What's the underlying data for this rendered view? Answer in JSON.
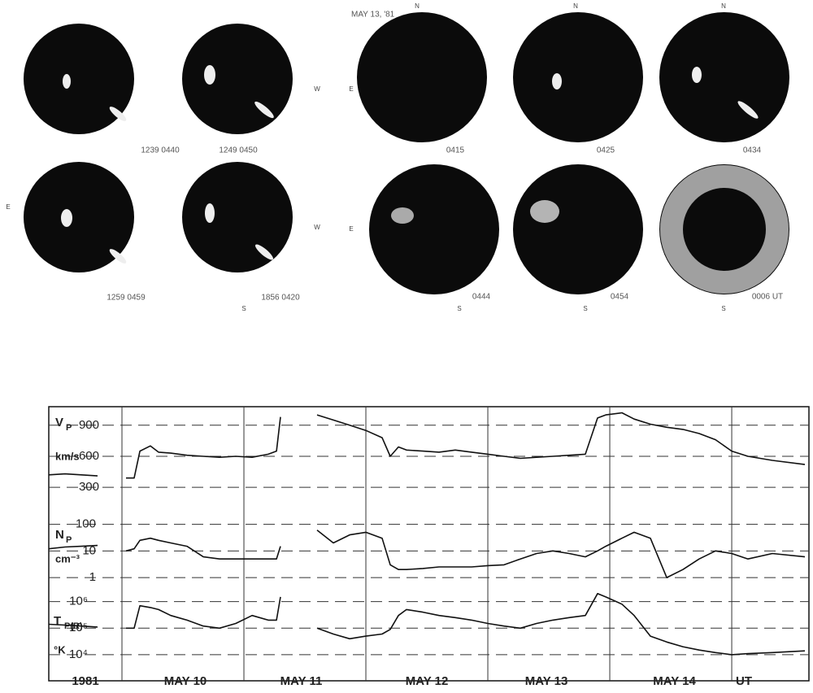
{
  "figure": {
    "date_label": "MAY 13, '81",
    "left_images": [
      "1239 0440",
      "1249 0450",
      "1259 0459",
      "1856 0420"
    ],
    "right_images": [
      "0415",
      "0425",
      "0434",
      "0444",
      "0454",
      "0006 UT"
    ],
    "directions": [
      "N",
      "N",
      "N",
      "E",
      "E",
      "W",
      "W",
      "E",
      "S",
      "S",
      "S",
      "S"
    ]
  },
  "timeline": {
    "year": "1981",
    "unit": "UT",
    "xticks": [
      {
        "value": 10.52,
        "label": "MAY 10"
      },
      {
        "value": 11.47,
        "label": "MAY 11"
      },
      {
        "value": 12.5,
        "label": "MAY 12"
      },
      {
        "value": 13.48,
        "label": "MAY 13"
      },
      {
        "value": 14.53,
        "label": "MAY 14"
      }
    ],
    "day_lines": [
      10,
      11,
      12,
      13,
      14,
      15
    ]
  },
  "chart_data": [
    {
      "type": "line",
      "ylabel": "V",
      "ylabel_sub": "P",
      "yunit": "km/s",
      "xlim": [
        9.4,
        15.633
      ],
      "ylim": [
        175,
        1040
      ],
      "yticks": [
        300,
        600,
        900
      ],
      "log": false,
      "grid": true,
      "x": [
        9.4,
        9.533,
        9.667,
        9.8,
        9.933,
        10.033,
        10.1,
        10.147,
        10.233,
        10.3,
        10.4,
        10.533,
        10.667,
        10.8,
        10.933,
        11.067,
        11.2,
        11.267,
        11.3,
        11.4,
        11.6,
        11.733,
        11.867,
        12.0,
        12.133,
        12.2,
        12.267,
        12.333,
        12.467,
        12.6,
        12.733,
        12.867,
        13.0,
        13.133,
        13.267,
        13.4,
        13.533,
        13.667,
        13.8,
        13.9,
        13.967,
        14.1,
        14.2,
        14.333,
        14.467,
        14.6,
        14.733,
        14.867,
        15.0,
        15.133,
        15.333,
        15.6
      ],
      "series": [
        {
          "color": "#111",
          "values": [
            420,
            430,
            420,
            410,
            null,
            390,
            390,
            650,
            700,
            640,
            630,
            610,
            600,
            590,
            600,
            590,
            620,
            650,
            980,
            null,
            1000,
            950,
            900,
            850,
            780,
            600,
            690,
            660,
            650,
            640,
            660,
            640,
            620,
            600,
            580,
            590,
            600,
            610,
            620,
            970,
            1000,
            1020,
            960,
            910,
            880,
            860,
            820,
            760,
            650,
            600,
            560,
            520
          ]
        }
      ]
    },
    {
      "type": "line",
      "ylabel": "N",
      "ylabel_sub": "P",
      "yunit": "cm⁻³",
      "xlim": [
        9.4,
        15.633
      ],
      "ylim": [
        0.35,
        800
      ],
      "yticks": [
        1,
        10,
        100
      ],
      "log": true,
      "grid": true,
      "x": [
        9.4,
        9.533,
        9.667,
        9.8,
        9.933,
        10.033,
        10.1,
        10.147,
        10.233,
        10.3,
        10.4,
        10.533,
        10.667,
        10.8,
        10.933,
        11.067,
        11.2,
        11.267,
        11.3,
        11.4,
        11.6,
        11.733,
        11.867,
        12.0,
        12.133,
        12.2,
        12.267,
        12.333,
        12.467,
        12.6,
        12.733,
        12.867,
        13.0,
        13.133,
        13.267,
        13.4,
        13.533,
        13.667,
        13.8,
        13.9,
        13.967,
        14.1,
        14.2,
        14.333,
        14.467,
        14.6,
        14.733,
        14.867,
        15.0,
        15.133,
        15.333,
        15.6
      ],
      "series": [
        {
          "color": "#111",
          "values": [
            12,
            14,
            15,
            16,
            null,
            10,
            12,
            25,
            30,
            25,
            20,
            15,
            6,
            5,
            5,
            5,
            5,
            5,
            15,
            null,
            60,
            20,
            40,
            50,
            30,
            3,
            2,
            2,
            2.2,
            2.5,
            2.5,
            2.5,
            2.8,
            3,
            5,
            8,
            10,
            8,
            6,
            10,
            15,
            30,
            50,
            30,
            1,
            2,
            5,
            10,
            8,
            5,
            8,
            6
          ]
        }
      ]
    },
    {
      "type": "line",
      "ylabel": "T",
      "ylabel_sub": "P(R)",
      "yunit": "°K",
      "xlim": [
        9.4,
        15.633
      ],
      "ylim": [
        1200,
        2800000
      ],
      "yticks": [
        {
          "value": 10000,
          "label": "10⁴"
        },
        {
          "value": 100000,
          "label": "10⁵"
        },
        {
          "value": 1000000,
          "label": "10⁶"
        }
      ],
      "log": true,
      "grid": true,
      "x": [
        9.4,
        9.533,
        9.667,
        9.8,
        9.933,
        10.033,
        10.1,
        10.147,
        10.233,
        10.3,
        10.4,
        10.533,
        10.667,
        10.8,
        10.933,
        11.067,
        11.2,
        11.267,
        11.3,
        11.4,
        11.6,
        11.733,
        11.867,
        12.0,
        12.133,
        12.2,
        12.267,
        12.333,
        12.467,
        12.6,
        12.733,
        12.867,
        13.0,
        13.133,
        13.267,
        13.4,
        13.533,
        13.667,
        13.8,
        13.9,
        13.967,
        14.1,
        14.2,
        14.333,
        14.467,
        14.6,
        14.733,
        14.867,
        15.0,
        15.133,
        15.333,
        15.6
      ],
      "series": [
        {
          "color": "#111",
          "values": [
            140000,
            130000,
            120000,
            110000,
            null,
            100000,
            100000,
            700000,
            600000,
            500000,
            300000,
            200000,
            120000,
            100000,
            150000,
            300000,
            200000,
            200000,
            1500000,
            null,
            100000,
            60000,
            40000,
            50000,
            60000,
            90000,
            300000,
            500000,
            400000,
            300000,
            250000,
            200000,
            150000,
            120000,
            100000,
            150000,
            200000,
            250000,
            300000,
            2000000,
            1500000,
            800000,
            300000,
            50000,
            30000,
            20000,
            15000,
            12000,
            10000,
            11000,
            12000,
            14000
          ]
        }
      ]
    }
  ]
}
